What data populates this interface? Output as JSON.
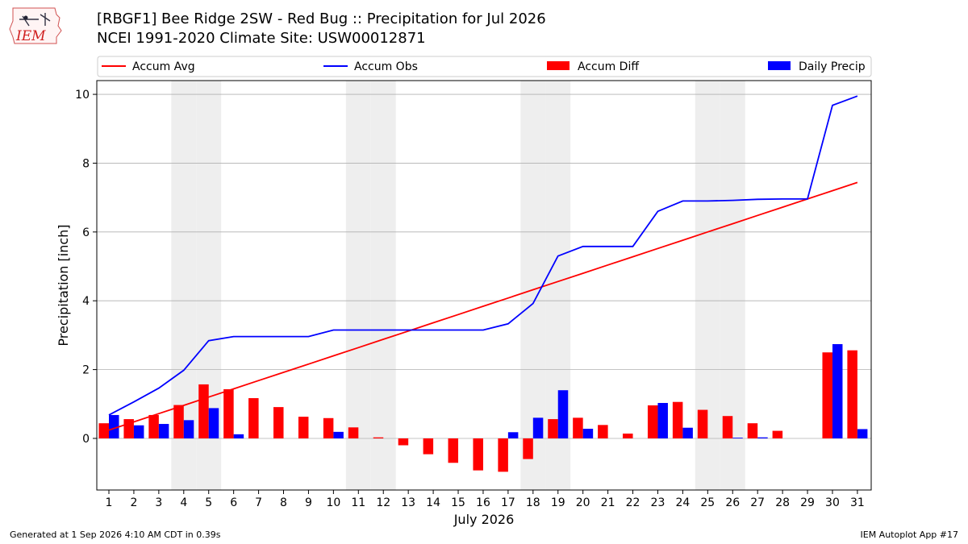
{
  "header": {
    "logo_text": "IEM",
    "title_line1": "[RBGF1] Bee Ridge 2SW - Red Bug :: Precipitation for Jul 2026",
    "title_line2": "NCEI 1991-2020 Climate Site: USW00012871"
  },
  "footer": {
    "generated": "Generated at 1 Sep 2026 4:10 AM CDT in 0.39s",
    "app": "IEM Autoplot App #17"
  },
  "chart_data": {
    "type": "bar",
    "xlabel": "July 2026",
    "ylabel": "Precipitation [inch]",
    "ylim": [
      -1.5,
      10.4
    ],
    "yticks": [
      0,
      2,
      4,
      6,
      8,
      10
    ],
    "grid": "horizontal",
    "legend_placement": "top, above plot",
    "weekend_shading_days": [
      4,
      5,
      11,
      12,
      18,
      19,
      25,
      26
    ],
    "categories": [
      "1",
      "2",
      "3",
      "4",
      "5",
      "6",
      "7",
      "8",
      "9",
      "10",
      "11",
      "12",
      "13",
      "14",
      "15",
      "16",
      "17",
      "18",
      "19",
      "20",
      "21",
      "22",
      "23",
      "24",
      "25",
      "26",
      "27",
      "28",
      "29",
      "30",
      "31"
    ],
    "series": [
      {
        "name": "Accum Avg",
        "kind": "line",
        "color": "#ff0000",
        "values": [
          0.24,
          0.48,
          0.72,
          0.96,
          1.2,
          1.44,
          1.68,
          1.92,
          2.16,
          2.4,
          2.64,
          2.88,
          3.12,
          3.36,
          3.6,
          3.84,
          4.08,
          4.32,
          4.56,
          4.8,
          5.04,
          5.28,
          5.52,
          5.76,
          6.0,
          6.24,
          6.48,
          6.72,
          6.96,
          7.2,
          7.44
        ]
      },
      {
        "name": "Accum Obs",
        "kind": "line",
        "color": "#0000ff",
        "values": [
          0.68,
          1.06,
          1.46,
          1.98,
          2.84,
          2.96,
          2.96,
          2.96,
          2.96,
          3.15,
          3.15,
          3.15,
          3.15,
          3.15,
          3.15,
          3.15,
          3.33,
          3.92,
          5.3,
          5.58,
          5.58,
          5.58,
          6.6,
          6.9,
          6.9,
          6.92,
          6.95,
          6.96,
          6.96,
          9.68,
          9.95
        ]
      },
      {
        "name": "Accum Diff",
        "kind": "bar",
        "color": "#ff0000",
        "values": [
          0.44,
          0.56,
          0.68,
          0.97,
          1.57,
          1.43,
          1.17,
          0.91,
          0.63,
          0.59,
          0.32,
          0.03,
          -0.2,
          -0.46,
          -0.71,
          -0.93,
          -0.97,
          -0.6,
          0.56,
          0.6,
          0.39,
          0.14,
          0.96,
          1.06,
          0.83,
          0.65,
          0.44,
          0.22,
          0.0,
          2.5,
          2.56
        ]
      },
      {
        "name": "Daily Precip",
        "kind": "bar",
        "color": "#0000ff",
        "values": [
          0.68,
          0.38,
          0.42,
          0.53,
          0.88,
          0.12,
          0.0,
          0.0,
          0.0,
          0.19,
          0.0,
          0.0,
          0.0,
          0.0,
          0.0,
          0.0,
          0.18,
          0.6,
          1.4,
          0.28,
          0.0,
          0.0,
          1.03,
          0.31,
          0.0,
          0.02,
          0.03,
          0.0,
          0.0,
          2.74,
          0.27
        ]
      }
    ]
  }
}
